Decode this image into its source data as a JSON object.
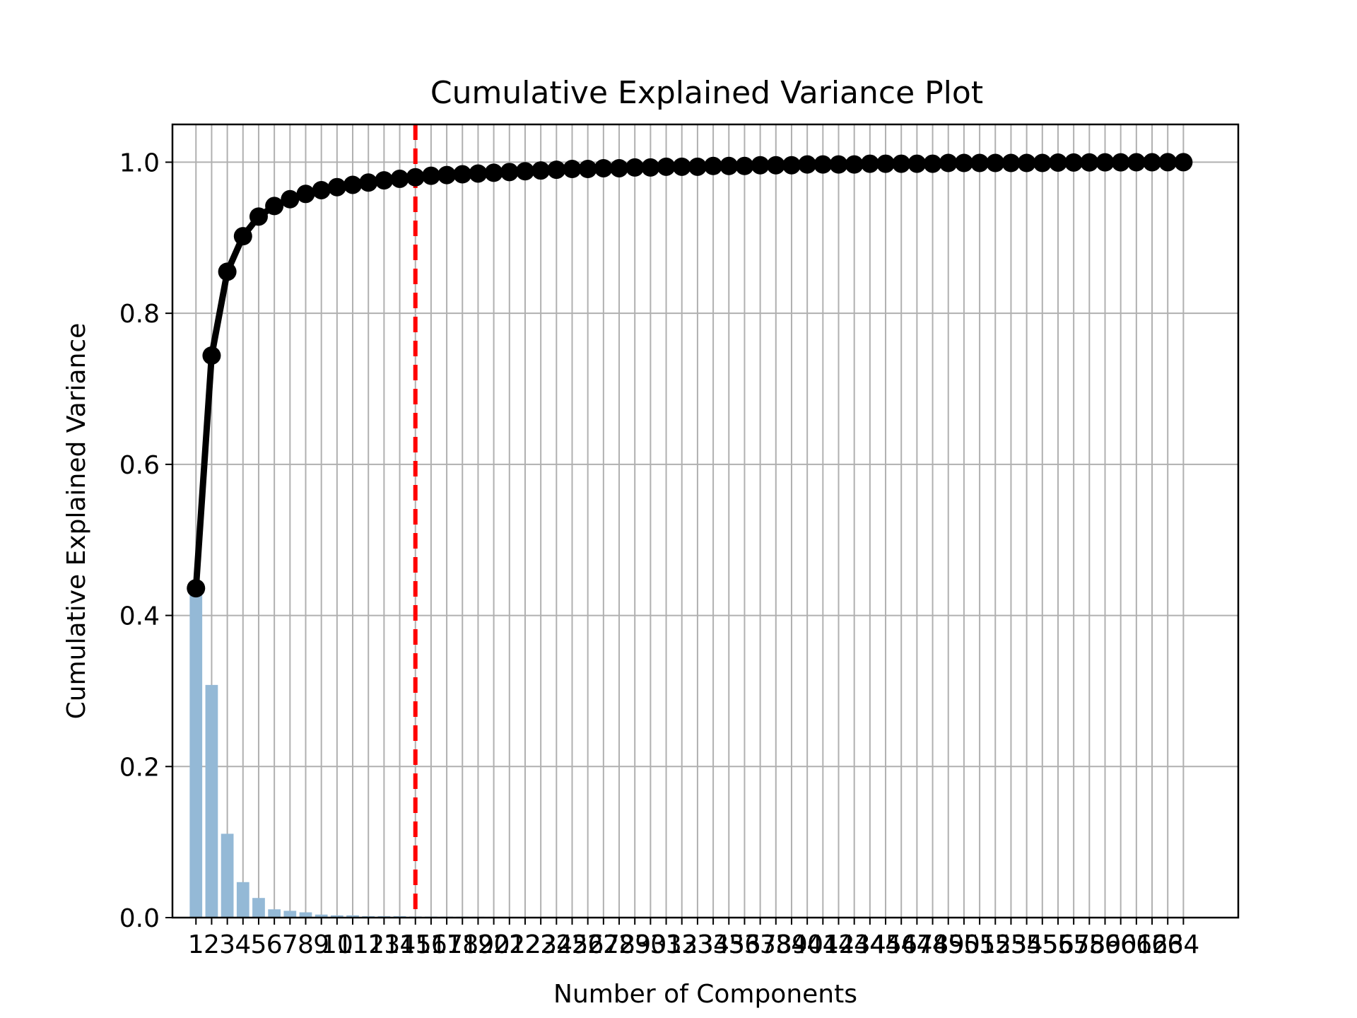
{
  "chart_data": {
    "type": "bar",
    "title": "Cumulative Explained Variance Plot",
    "xlabel": "Number of Components",
    "ylabel": "Cumulative Explained Variance",
    "xlim": [
      -1.5,
      66.5
    ],
    "ylim": [
      0.0,
      1.05
    ],
    "yticks": [
      "0.0",
      "0.2",
      "0.4",
      "0.6",
      "0.8",
      "1.0"
    ],
    "xticks": [
      "1",
      "2",
      "3",
      "4",
      "5",
      "6",
      "7",
      "8",
      "9",
      "10",
      "11",
      "12",
      "13",
      "14",
      "15",
      "16",
      "17",
      "18",
      "19",
      "20",
      "21",
      "22",
      "23",
      "24",
      "25",
      "26",
      "27",
      "28",
      "29",
      "30",
      "31",
      "32",
      "33",
      "34",
      "35",
      "36",
      "37",
      "38",
      "39",
      "40",
      "41",
      "42",
      "43",
      "44",
      "45",
      "46",
      "47",
      "48",
      "49",
      "50",
      "51",
      "52",
      "53",
      "54",
      "55",
      "56",
      "57",
      "58",
      "59",
      "60",
      "61",
      "62",
      "63",
      "64"
    ],
    "grid": true,
    "series": [
      {
        "type": "bar",
        "color": "#94b9d6",
        "values": [
          0.436,
          0.308,
          0.111,
          0.047,
          0.026,
          0.011,
          0.009,
          0.007,
          0.004,
          0.003,
          0.003,
          0.002,
          0.002,
          0.002,
          0.0015,
          0.0014,
          0.0013,
          0.0012,
          0.0011,
          0.001,
          0.0009,
          0.0009,
          0.0008,
          0.0008,
          0.0007,
          0.0007,
          0.0006,
          0.0006,
          0.0006,
          0.0005,
          0.0005,
          0.0005,
          0.0004,
          0.0004,
          0.0004,
          0.0004,
          0.0003,
          0.0003,
          0.0003,
          0.0003,
          0.0003,
          0.0003,
          0.0002,
          0.0002,
          0.0002,
          0.0002,
          0.0002,
          0.0002,
          0.0002,
          0.0002,
          0.0002,
          0.0001,
          0.0001,
          0.0001,
          0.0001,
          0.0001,
          0.0001,
          0.0001,
          0.0001,
          0.0001,
          0.0001,
          0.0001,
          0.0001,
          0.0001
        ]
      },
      {
        "type": "line",
        "color": "#000000",
        "marker": "circle",
        "values": [
          0.436,
          0.744,
          0.855,
          0.902,
          0.928,
          0.942,
          0.951,
          0.958,
          0.963,
          0.967,
          0.97,
          0.973,
          0.976,
          0.978,
          0.98,
          0.982,
          0.983,
          0.984,
          0.985,
          0.986,
          0.987,
          0.988,
          0.989,
          0.99,
          0.991,
          0.991,
          0.992,
          0.992,
          0.993,
          0.993,
          0.994,
          0.994,
          0.994,
          0.995,
          0.995,
          0.995,
          0.996,
          0.996,
          0.996,
          0.997,
          0.997,
          0.997,
          0.997,
          0.998,
          0.998,
          0.998,
          0.998,
          0.998,
          0.999,
          0.999,
          0.999,
          0.999,
          0.999,
          0.999,
          0.999,
          0.9995,
          0.9996,
          0.9997,
          0.9998,
          0.9998,
          0.9999,
          0.9999,
          1.0,
          1.0
        ]
      }
    ],
    "threshold": {
      "type": "vline",
      "x": 15,
      "color": "#ff0000",
      "style": "dashed"
    }
  }
}
